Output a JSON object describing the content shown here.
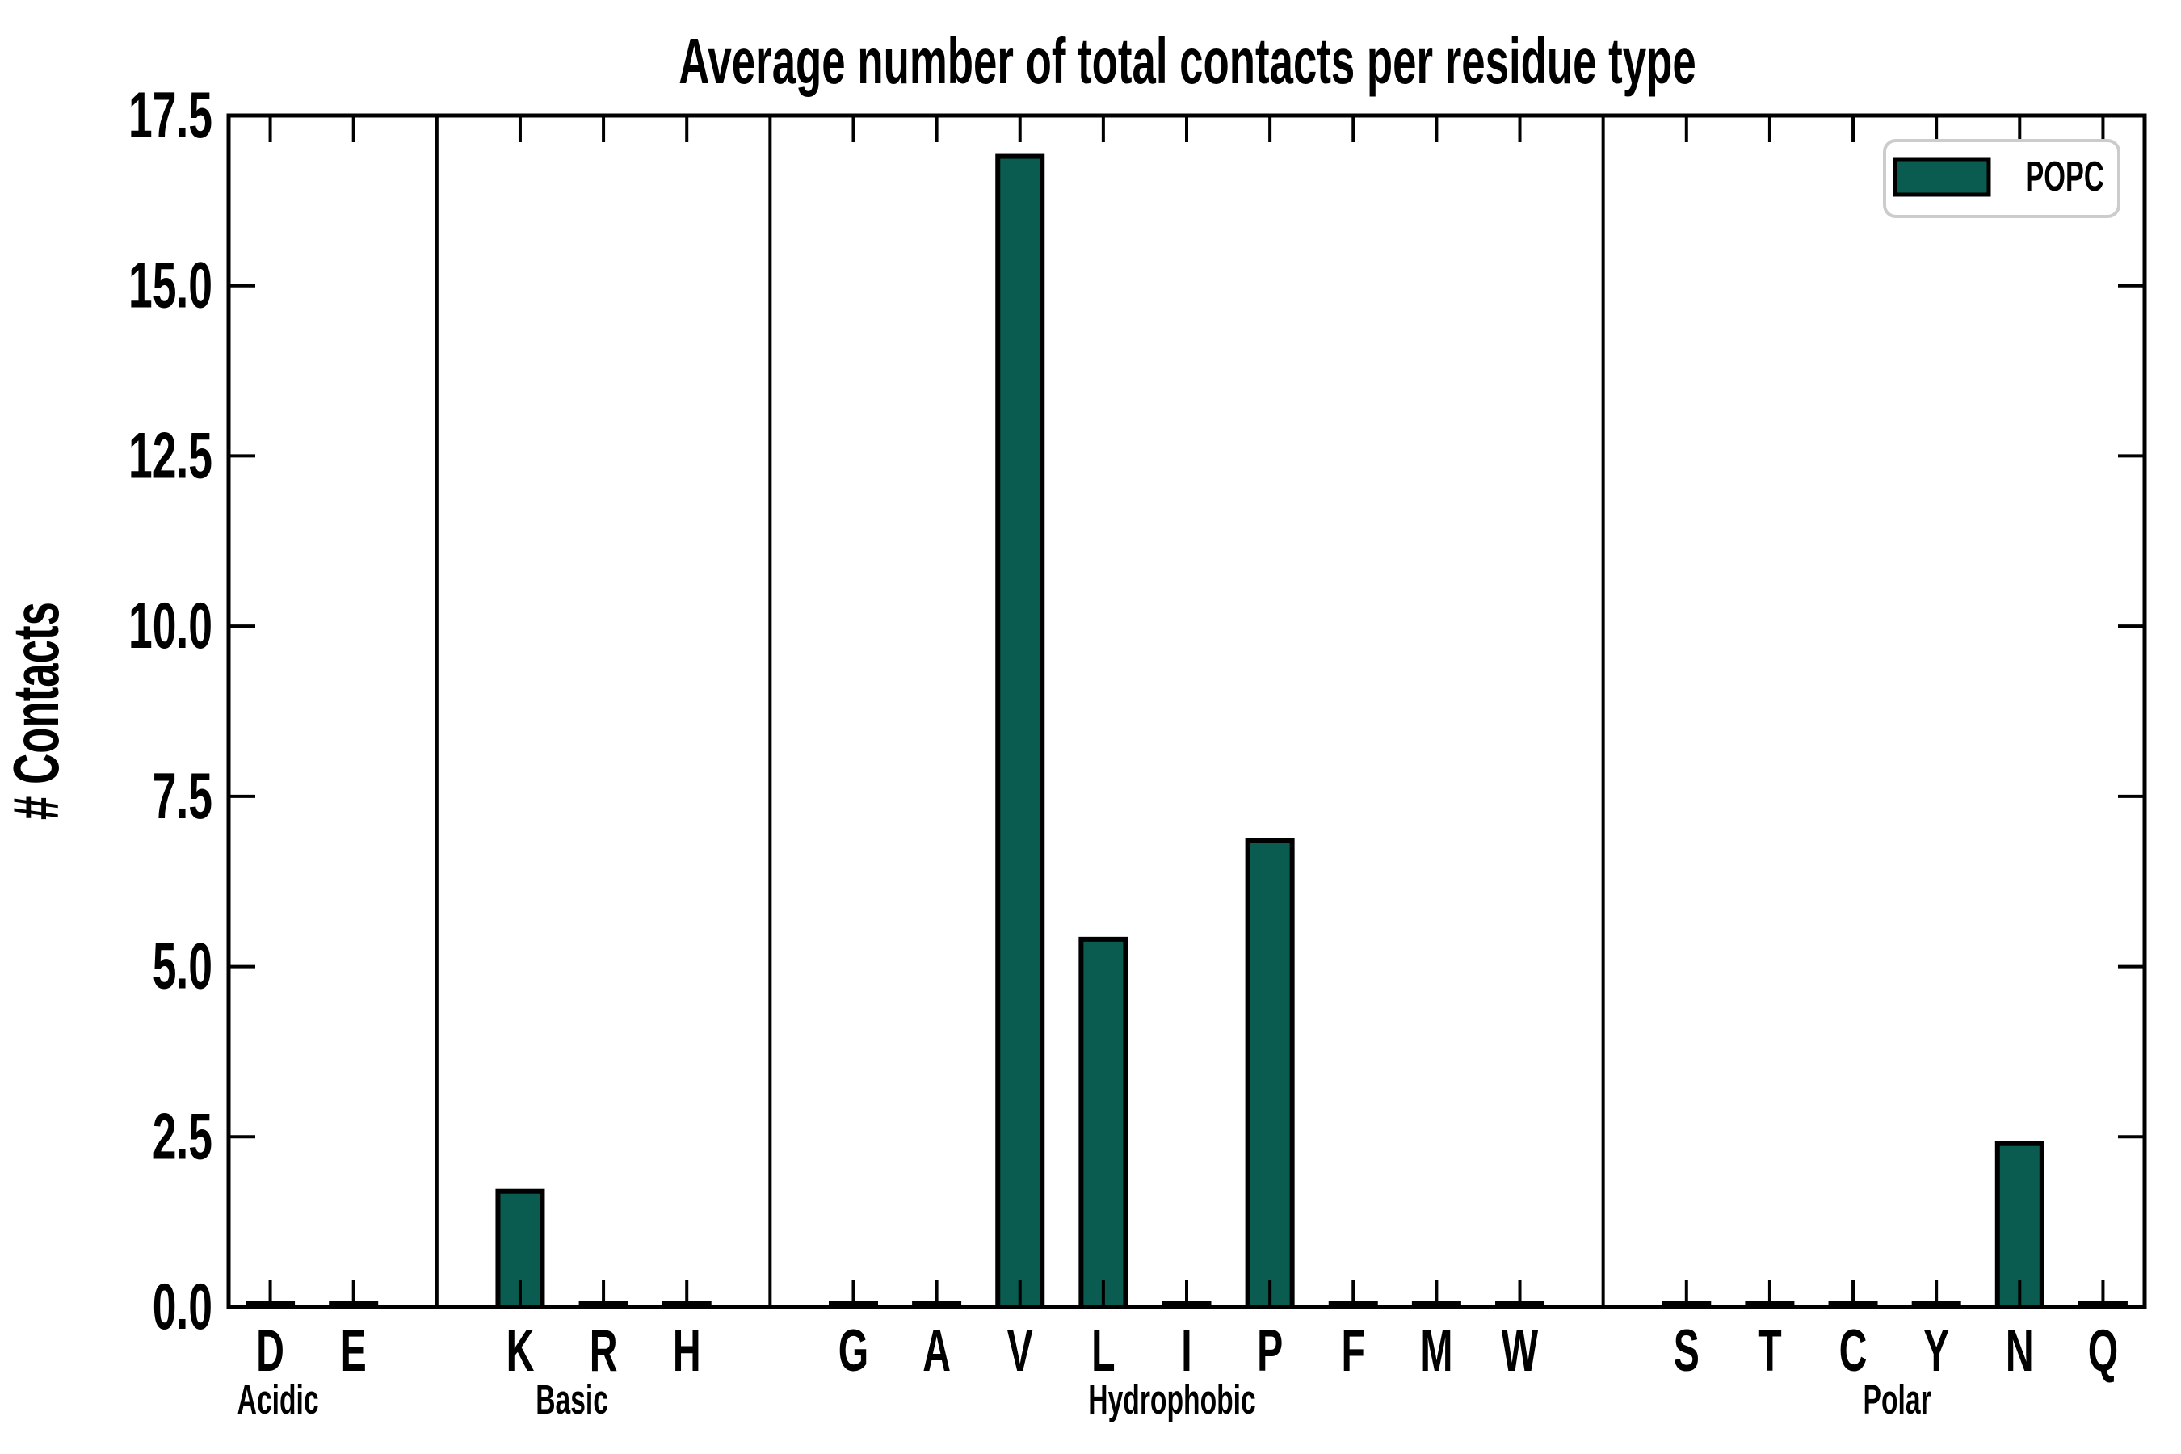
{
  "chart_data": {
    "type": "bar",
    "title": "Average number of total contacts per residue type",
    "xlabel": "",
    "ylabel": "# Contacts",
    "ylim": [
      0,
      17.5
    ],
    "yticks": [
      "0.0",
      "2.5",
      "5.0",
      "7.5",
      "10.0",
      "12.5",
      "15.0",
      "17.5"
    ],
    "grid": "off",
    "legend_position": "upper right",
    "legend": [
      {
        "label": "POPC",
        "color": "#0a5c50"
      }
    ],
    "bar_color": "#0a5c50",
    "bar_edge_color": "#000000",
    "categories": [
      "D",
      "E",
      "K",
      "R",
      "H",
      "G",
      "A",
      "V",
      "L",
      "I",
      "P",
      "F",
      "M",
      "W",
      "S",
      "T",
      "C",
      "Y",
      "N",
      "Q"
    ],
    "groups": [
      {
        "name": "Acidic",
        "categories": [
          "D",
          "E"
        ],
        "values": [
          0.05,
          0.05
        ]
      },
      {
        "name": "Basic",
        "categories": [
          "K",
          "R",
          "H"
        ],
        "values": [
          1.7,
          0.05,
          0.05
        ]
      },
      {
        "name": "Hydrophobic",
        "categories": [
          "G",
          "A",
          "V",
          "L",
          "I",
          "P",
          "F",
          "M",
          "W"
        ],
        "values": [
          0.05,
          0.05,
          16.9,
          5.4,
          0.05,
          6.85,
          0.05,
          0.05,
          0.05
        ]
      },
      {
        "name": "Polar",
        "categories": [
          "S",
          "T",
          "C",
          "Y",
          "N",
          "Q"
        ],
        "values": [
          0.05,
          0.05,
          0.05,
          0.05,
          2.4,
          0.05
        ]
      }
    ]
  }
}
